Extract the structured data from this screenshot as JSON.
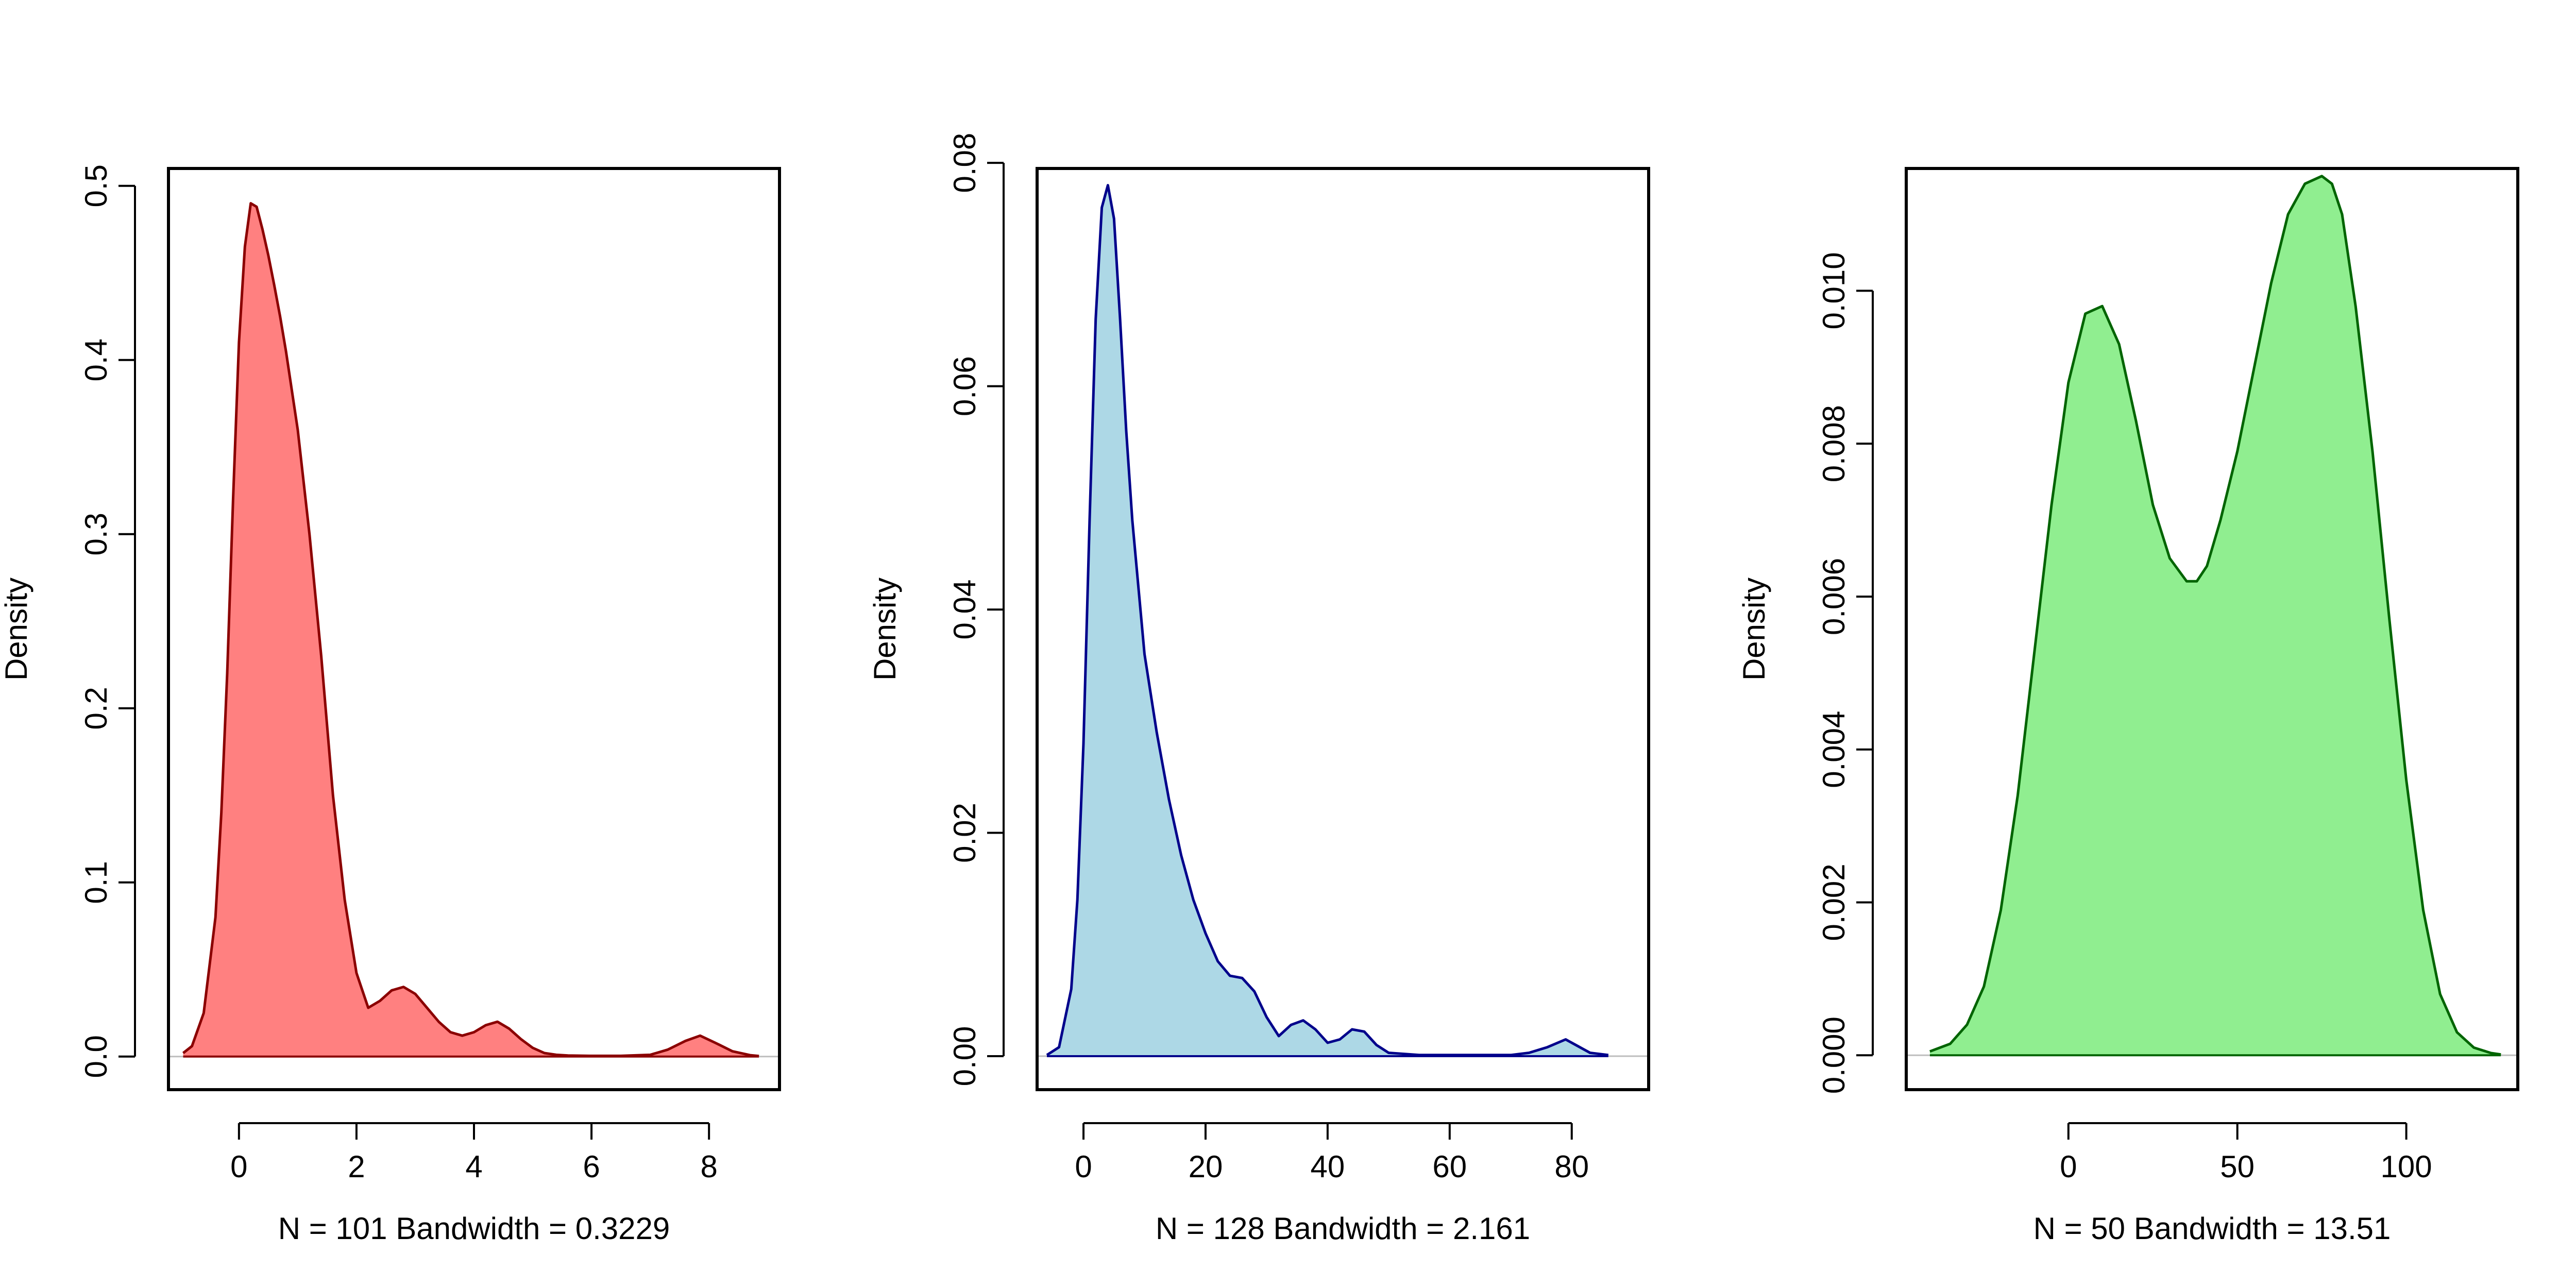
{
  "chart_data": [
    {
      "type": "area",
      "title": "",
      "xlabel": "N = 101   Bandwidth = 0.3229",
      "ylabel": "Density",
      "fill_color": "#FF8080",
      "line_color": "#8B0000",
      "xlim": [
        -1.2,
        9.2
      ],
      "ylim": [
        -0.019,
        0.51
      ],
      "x_ticks": [
        0,
        2,
        4,
        6,
        8
      ],
      "y_ticks": [
        0.0,
        0.1,
        0.2,
        0.3,
        0.4,
        0.5
      ],
      "y_tick_labels": [
        "0.0",
        "0.1",
        "0.2",
        "0.3",
        "0.4",
        "0.5"
      ],
      "x": [
        -0.95,
        -0.8,
        -0.6,
        -0.4,
        -0.3,
        -0.2,
        -0.1,
        0.0,
        0.1,
        0.2,
        0.3,
        0.4,
        0.5,
        0.6,
        0.7,
        0.8,
        1.0,
        1.2,
        1.4,
        1.6,
        1.8,
        2.0,
        2.2,
        2.4,
        2.6,
        2.8,
        3.0,
        3.2,
        3.4,
        3.6,
        3.8,
        4.0,
        4.2,
        4.4,
        4.6,
        4.8,
        5.0,
        5.2,
        5.4,
        5.6,
        6.0,
        6.5,
        7.0,
        7.3,
        7.6,
        7.85,
        8.1,
        8.4,
        8.7,
        8.85
      ],
      "y": [
        0.002,
        0.006,
        0.025,
        0.08,
        0.14,
        0.22,
        0.32,
        0.41,
        0.465,
        0.49,
        0.488,
        0.475,
        0.46,
        0.443,
        0.425,
        0.405,
        0.36,
        0.3,
        0.23,
        0.15,
        0.09,
        0.048,
        0.028,
        0.032,
        0.038,
        0.04,
        0.036,
        0.028,
        0.02,
        0.014,
        0.012,
        0.014,
        0.018,
        0.02,
        0.016,
        0.01,
        0.005,
        0.002,
        0.001,
        0.0006,
        0.0004,
        0.0004,
        0.001,
        0.004,
        0.009,
        0.012,
        0.008,
        0.003,
        0.0008,
        0.0003
      ]
    },
    {
      "type": "area",
      "title": "",
      "xlabel": "N = 128   Bandwidth = 2.161",
      "ylabel": "Density",
      "fill_color": "#ADD8E6",
      "line_color": "#00008B",
      "xlim": [
        -7.6,
        92.6
      ],
      "ylim": [
        -0.003,
        0.0795
      ],
      "x_ticks": [
        0,
        20,
        40,
        60,
        80
      ],
      "y_ticks": [
        0.0,
        0.02,
        0.04,
        0.06,
        0.08
      ],
      "y_tick_labels": [
        "0.00",
        "0.02",
        "0.04",
        "0.06",
        "0.08"
      ],
      "x": [
        -6,
        -4,
        -2,
        -1,
        0,
        1,
        2,
        3,
        4,
        5,
        6,
        7,
        8,
        10,
        12,
        14,
        16,
        18,
        20,
        22,
        24,
        26,
        28,
        30,
        32,
        34,
        36,
        38,
        40,
        42,
        44,
        46,
        48,
        50,
        55,
        60,
        65,
        70,
        73,
        76,
        79,
        81,
        83,
        86
      ],
      "y": [
        0.0001,
        0.0008,
        0.006,
        0.014,
        0.028,
        0.048,
        0.066,
        0.076,
        0.078,
        0.075,
        0.066,
        0.056,
        0.048,
        0.036,
        0.029,
        0.023,
        0.018,
        0.014,
        0.011,
        0.0085,
        0.0072,
        0.007,
        0.0058,
        0.0035,
        0.0018,
        0.0028,
        0.0032,
        0.0024,
        0.0012,
        0.0015,
        0.0024,
        0.0022,
        0.001,
        0.0003,
        0.0001,
        0.0001,
        0.0001,
        0.0001,
        0.0003,
        0.0008,
        0.0015,
        0.0009,
        0.0003,
        0.0001
      ]
    },
    {
      "type": "area",
      "title": "",
      "xlabel": "N = 50   Bandwidth = 13.51",
      "ylabel": "Density",
      "fill_color": "#90EE90",
      "line_color": "#006400",
      "xlim": [
        -48,
        133
      ],
      "ylim": [
        -0.00045,
        0.0116
      ],
      "x_ticks": [
        0,
        50,
        100
      ],
      "y_ticks": [
        0.0,
        0.002,
        0.004,
        0.006,
        0.008,
        0.01
      ],
      "y_tick_labels": [
        "0.000",
        "0.002",
        "0.004",
        "0.006",
        "0.008",
        "0.010"
      ],
      "x": [
        -41,
        -35,
        -30,
        -25,
        -20,
        -15,
        -10,
        -5,
        0,
        5,
        10,
        15,
        20,
        25,
        30,
        35,
        38,
        41,
        45,
        50,
        55,
        60,
        65,
        70,
        75,
        78,
        81,
        85,
        90,
        95,
        100,
        105,
        110,
        115,
        120,
        125,
        128
      ],
      "y": [
        5e-05,
        0.00015,
        0.0004,
        0.0009,
        0.0019,
        0.0034,
        0.0053,
        0.0072,
        0.0088,
        0.0097,
        0.0098,
        0.0093,
        0.0083,
        0.0072,
        0.0065,
        0.0062,
        0.0062,
        0.0064,
        0.007,
        0.0079,
        0.009,
        0.0101,
        0.011,
        0.0114,
        0.0115,
        0.0114,
        0.011,
        0.0098,
        0.0079,
        0.0057,
        0.0036,
        0.0019,
        0.0008,
        0.0003,
        0.0001,
        3e-05,
        1e-05
      ]
    }
  ]
}
